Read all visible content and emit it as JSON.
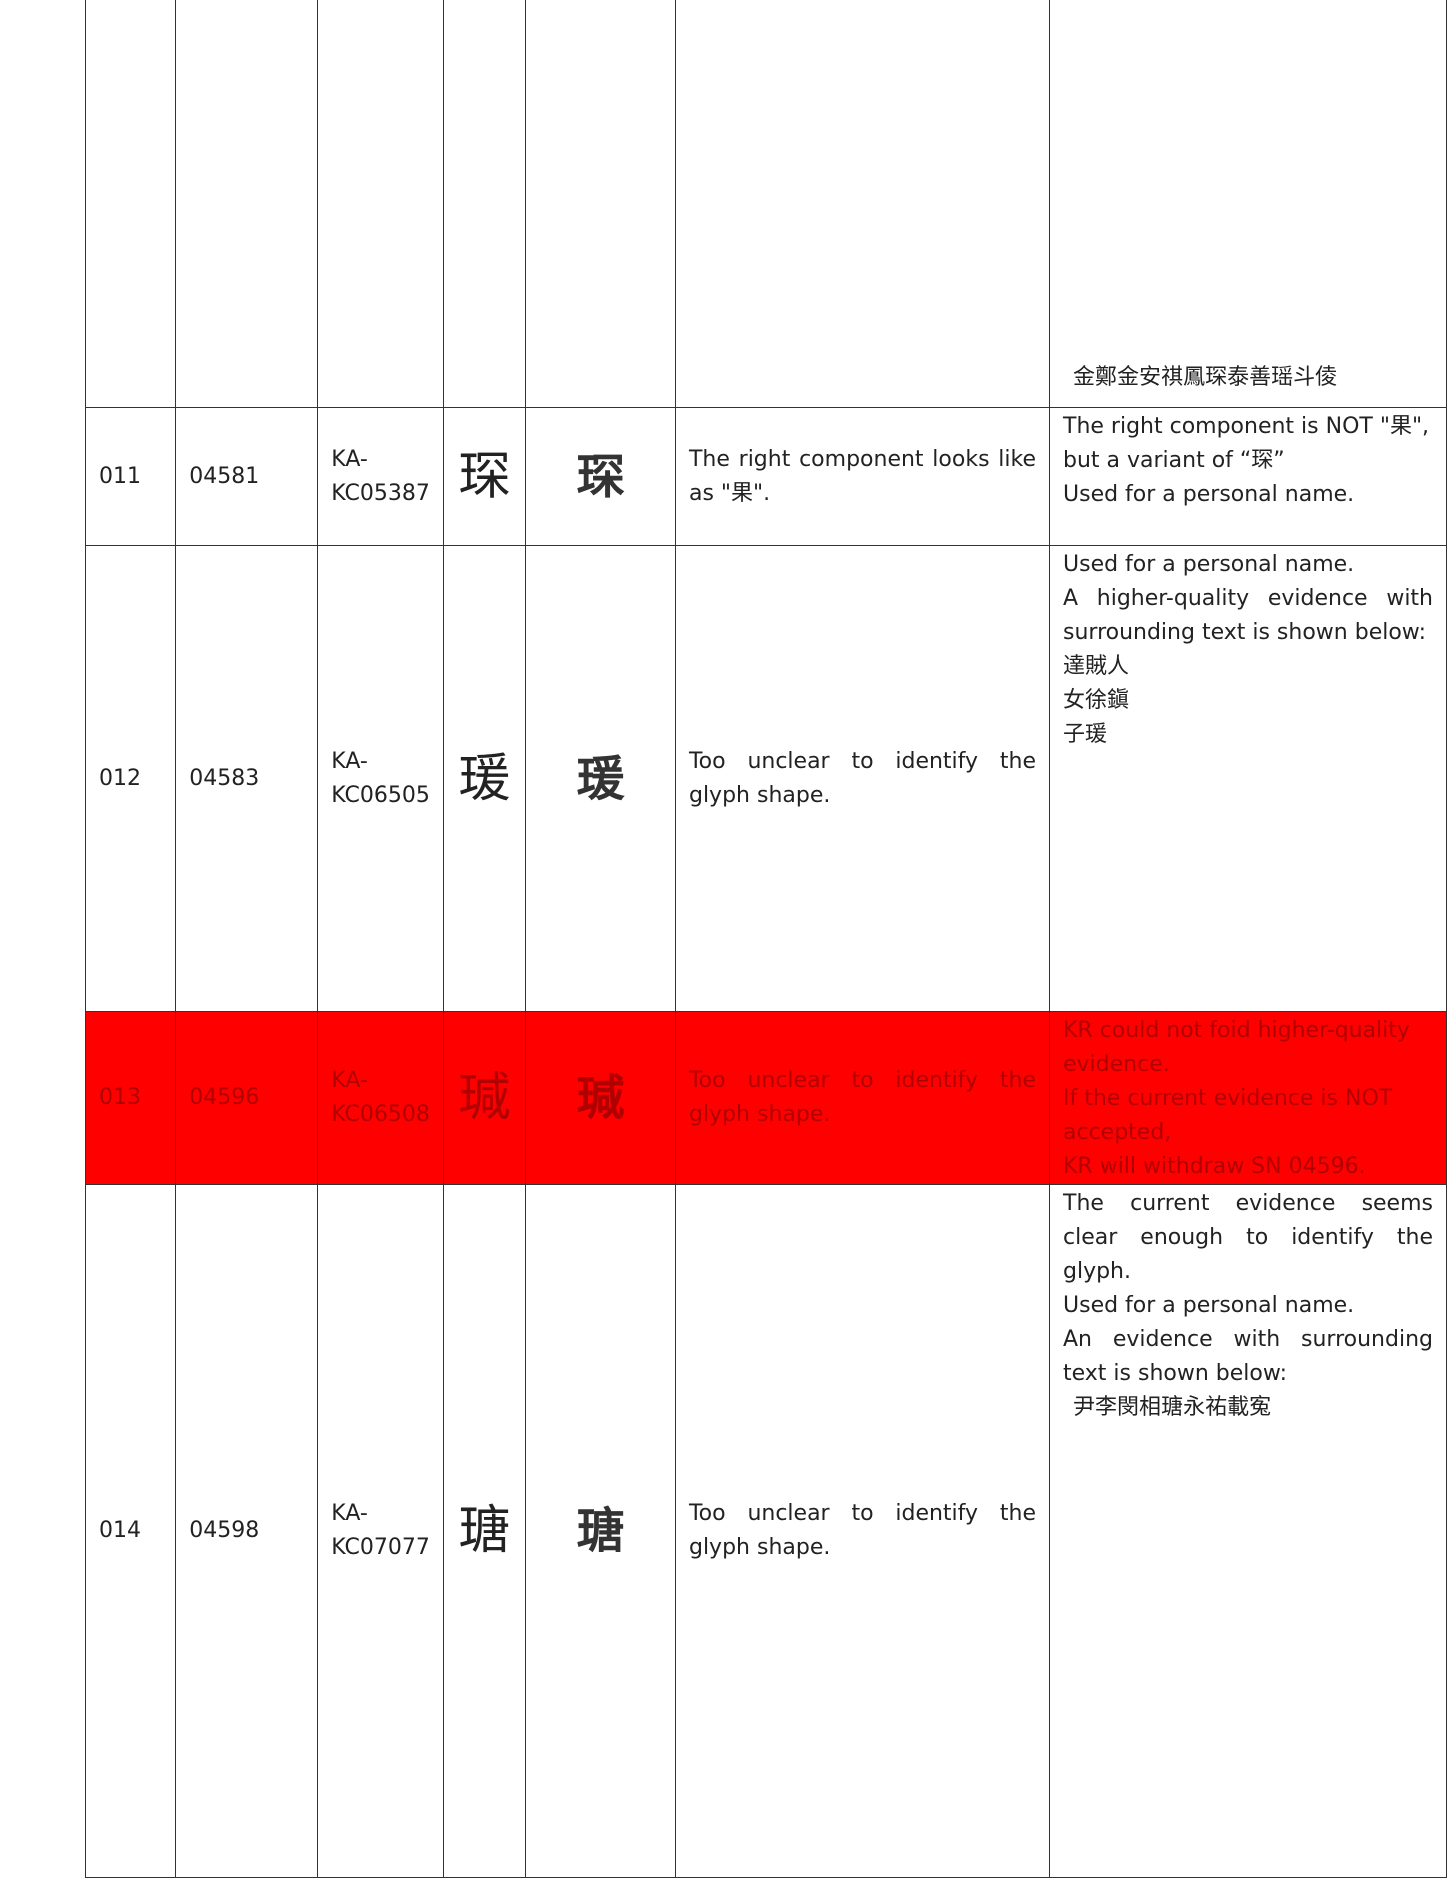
{
  "table": {
    "rows": [
      {
        "evidence_grid": [
          [
            "金",
            "鄭",
            "金",
            "安"
          ],
          [
            "祺",
            "鳳",
            "琛",
            "泰"
          ],
          [
            "善",
            "瑶",
            "斗",
            "倰"
          ]
        ]
      },
      {
        "no": "011",
        "sn": "04581",
        "source": "KA-KC05387",
        "glyph": "琛",
        "evidence_glyph": "琛",
        "comment": "The right component looks like as \"果\".",
        "response": [
          "The right component is NOT \"果\", but a variant of “琛”",
          "Used for a personal name."
        ]
      },
      {
        "no": "012",
        "sn": "04583",
        "source": "KA-KC06505",
        "glyph": "瑗",
        "evidence_glyph": "瑗",
        "comment": "Too unclear to identify the glyph shape.",
        "response": [
          "Used for a personal name.",
          "A higher-quality evidence with surrounding text is shown below:"
        ],
        "evidence_columns": [
          "達賊人",
          "女徐鎭",
          "子瑗"
        ]
      },
      {
        "no": "013",
        "sn": "04596",
        "source": "KA-KC06508",
        "glyph": "瑊",
        "evidence_glyph": "瑊",
        "comment": "Too unclear to identify the glyph shape.",
        "response": [
          "KR could not foid higher-quality evidence.",
          "If the current evidence is NOT accepted,",
          "KR will withdraw SN 04596."
        ]
      },
      {
        "no": "014",
        "sn": "04598",
        "source": "KA-KC07077",
        "glyph": "瑭",
        "evidence_glyph": "瑭",
        "comment": "Too unclear to identify the glyph shape.",
        "response": [
          "The current evidence seems clear enough to identify the glyph.",
          "Used for a personal name.",
          "An evidence with surrounding text is shown below:"
        ],
        "evidence_grid": [
          [
            "尹",
            "李",
            "閔"
          ],
          [
            "相",
            "瑭",
            "永"
          ],
          [
            "祐",
            "載",
            "寃"
          ]
        ]
      }
    ]
  }
}
